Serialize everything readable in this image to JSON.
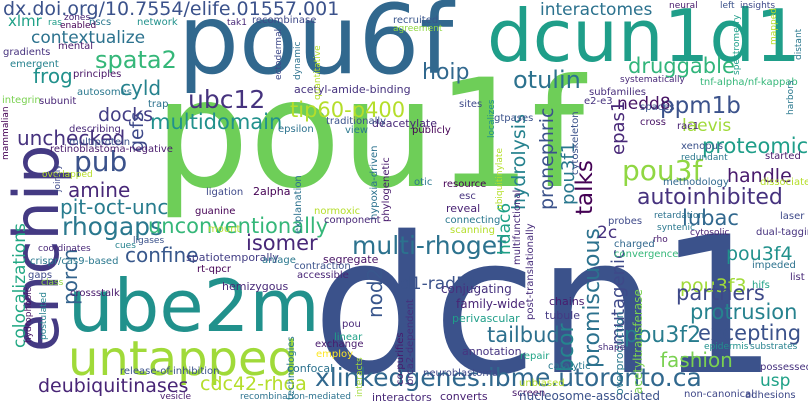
{
  "words": [
    {
      "text": "dx.doi.org/10.7554/elife.01557.001",
      "color": "#3b528b"
    },
    {
      "text": "pou6f",
      "color": "#31688e"
    },
    {
      "text": "dcun1d1",
      "color": "#1f9e89"
    },
    {
      "text": "pou1f",
      "color": "#6ece58"
    },
    {
      "text": "dcn1",
      "color": "#3b528b"
    },
    {
      "text": "enchip",
      "color": "#443a83"
    },
    {
      "text": "ube2m",
      "color": "#21918c"
    },
    {
      "text": "untapped",
      "color": "#a0da39"
    },
    {
      "text": "spata2",
      "color": "#35b779"
    },
    {
      "text": "contextualize",
      "color": "#2c728e"
    },
    {
      "text": "xlmr",
      "color": "#1fa187"
    },
    {
      "text": "frog",
      "color": "#21918c"
    },
    {
      "text": "ubc12",
      "color": "#46337e"
    },
    {
      "text": "hoip",
      "color": "#31688e"
    },
    {
      "text": "otulin",
      "color": "#2c728e"
    },
    {
      "text": "interactomes",
      "color": "#2c728e"
    },
    {
      "text": "druggable",
      "color": "#31b57b"
    },
    {
      "text": "ppm1b",
      "color": "#3b528b"
    },
    {
      "text": "nedd8",
      "color": "#471365"
    },
    {
      "text": "tip60-p400",
      "color": "#b5de2b"
    },
    {
      "text": "multidomain",
      "color": "#21918c"
    },
    {
      "text": "cyld",
      "color": "#26828e"
    },
    {
      "text": "docks",
      "color": "#433e85"
    },
    {
      "text": "gefs",
      "color": "#3e4989"
    },
    {
      "text": "unchecked",
      "color": "#46327e"
    },
    {
      "text": "pub",
      "color": "#3b528b"
    },
    {
      "text": "amine",
      "color": "#482878"
    },
    {
      "text": "pit-oct-unc",
      "color": "#287c8e"
    },
    {
      "text": "rhogaps",
      "color": "#2a788e"
    },
    {
      "text": "multi-rhogef",
      "color": "#2c728e"
    },
    {
      "text": "unconventionally",
      "color": "#35b779"
    },
    {
      "text": "isomer",
      "color": "#482878"
    },
    {
      "text": "confine",
      "color": "#38588c"
    },
    {
      "text": "porcn",
      "color": "#33638d"
    },
    {
      "text": "colocalizations",
      "color": "#22a884"
    },
    {
      "text": "deubiquitinases",
      "color": "#482576"
    },
    {
      "text": "cdc42-rhoa",
      "color": "#b5de2b"
    },
    {
      "text": "xlinkedgenes.ibme.utoronto.ca",
      "color": "#31688e"
    },
    {
      "text": "talks",
      "color": "#440154"
    },
    {
      "text": "pou3f1",
      "color": "#2a788e"
    },
    {
      "text": "pou3f2",
      "color": "#287c8e"
    },
    {
      "text": "pou3f3",
      "color": "#a0da39"
    },
    {
      "text": "pou3f4",
      "color": "#21918c"
    },
    {
      "text": "pou3f",
      "color": "#90d743"
    },
    {
      "text": "proteomic",
      "color": "#1f9e89"
    },
    {
      "text": "handle",
      "color": "#481a6c"
    },
    {
      "text": "autoinhibited",
      "color": "#46327e"
    },
    {
      "text": "lubac",
      "color": "#31688e"
    },
    {
      "text": "partners",
      "color": "#3e4989"
    },
    {
      "text": "protrusion",
      "color": "#26828e"
    },
    {
      "text": "excepting",
      "color": "#3b528b"
    },
    {
      "text": "fashion",
      "color": "#7ad151"
    },
    {
      "text": "usp",
      "color": "#1fa187"
    },
    {
      "text": "tailbud",
      "color": "#2d708e"
    },
    {
      "text": "promiscuous",
      "color": "#2c728e"
    },
    {
      "text": "mutagenic",
      "color": "#3e4989"
    },
    {
      "text": "bcor",
      "color": "#25848e"
    },
    {
      "text": "d1-rad51",
      "color": "#3b528b"
    },
    {
      "text": "nod2",
      "color": "#39568c"
    },
    {
      "text": "hdac6",
      "color": "#1fa187"
    },
    {
      "text": "pronephric",
      "color": "#3b528b"
    },
    {
      "text": "hydrolysis",
      "color": "#26828e"
    },
    {
      "text": "epas1",
      "color": "#482878"
    },
    {
      "text": "2c",
      "color": "#46327e"
    },
    {
      "text": "laevis",
      "color": "#a0da39"
    },
    {
      "text": "acetyl-amide-binding",
      "color": "#46327e"
    },
    {
      "text": "family-wide",
      "color": "#482576"
    },
    {
      "text": "perivascular",
      "color": "#1f9e89"
    },
    {
      "text": "annotation",
      "color": "#463480"
    },
    {
      "text": "chains",
      "color": "#481d6f"
    },
    {
      "text": "tubule",
      "color": "#443a83"
    },
    {
      "text": "repair",
      "color": "#20a486"
    },
    {
      "text": "catalytic",
      "color": "#2a788e"
    },
    {
      "text": "unbiased",
      "color": "#b5de2b"
    },
    {
      "text": "screen",
      "color": "#481a6c"
    },
    {
      "text": "converts",
      "color": "#482173"
    },
    {
      "text": "nucleosome-associated",
      "color": "#3b528b"
    },
    {
      "text": "non-canonical",
      "color": "#3f4788"
    },
    {
      "text": "recombination-mediated",
      "color": "#2c728e"
    },
    {
      "text": "interactors",
      "color": "#482878"
    },
    {
      "text": "confocal",
      "color": "#2c728e"
    },
    {
      "text": "vesicle",
      "color": "#481a6c"
    },
    {
      "text": "release-of-inhibition",
      "color": "#3b528b"
    },
    {
      "text": "crossstalk",
      "color": "#481a6c"
    },
    {
      "text": "gaps",
      "color": "#3e4989"
    },
    {
      "text": "hemizygous",
      "color": "#482878"
    },
    {
      "text": "rt-qpcr",
      "color": "#440154"
    },
    {
      "text": "spatiotemporally",
      "color": "#433e85"
    },
    {
      "text": "crispr/cas9-based",
      "color": "#2a788e"
    },
    {
      "text": "ligases",
      "color": "#3b528b"
    },
    {
      "text": "exchange",
      "color": "#481a6c"
    },
    {
      "text": "linear",
      "color": "#1fa187"
    },
    {
      "text": "employ",
      "color": "#fde725"
    },
    {
      "text": "pou",
      "color": "#482878"
    },
    {
      "text": "accessible",
      "color": "#482576"
    },
    {
      "text": "segregate",
      "color": "#471365"
    },
    {
      "text": "conjugating",
      "color": "#46327e"
    },
    {
      "text": "contraction",
      "color": "#3b528b"
    },
    {
      "text": "anlage",
      "color": "#2a788e"
    },
    {
      "text": "retinoblastoma-negative",
      "color": "#481a6c"
    },
    {
      "text": "multiprotein",
      "color": "#3b528b"
    },
    {
      "text": "describing",
      "color": "#482878"
    },
    {
      "text": "subunit",
      "color": "#482576"
    },
    {
      "text": "autosomes",
      "color": "#2a788e"
    },
    {
      "text": "principles",
      "color": "#471365"
    },
    {
      "text": "mental",
      "color": "#481a6c"
    },
    {
      "text": "gradients",
      "color": "#46327e"
    },
    {
      "text": "emergent",
      "color": "#26828e"
    },
    {
      "text": "integrin",
      "color": "#7ad151"
    },
    {
      "text": "trap",
      "color": "#2c728e"
    },
    {
      "text": "ectodermal",
      "color": "#3e4989"
    },
    {
      "text": "recombinase",
      "color": "#3e4989"
    },
    {
      "text": "recruited",
      "color": "#39568c"
    },
    {
      "text": "agreement",
      "color": "#90d743"
    },
    {
      "text": "tak1",
      "color": "#482878"
    },
    {
      "text": "network",
      "color": "#21918c"
    },
    {
      "text": "nscs",
      "color": "#2a788e"
    },
    {
      "text": "zones",
      "color": "#482173"
    },
    {
      "text": "enabled",
      "color": "#440154"
    },
    {
      "text": "ras",
      "color": "#1f9e89"
    },
    {
      "text": "subfamilies",
      "color": "#472d7b"
    },
    {
      "text": "systematically",
      "color": "#482878"
    },
    {
      "text": "tnf-alpha/nf-kappab",
      "color": "#35b779"
    },
    {
      "text": "sites",
      "color": "#3e4989"
    },
    {
      "text": "gtpases",
      "color": "#3b528b"
    },
    {
      "text": "localizes",
      "color": "#21918c"
    },
    {
      "text": "deacetylate",
      "color": "#482878"
    },
    {
      "text": "traditionally",
      "color": "#3b528b"
    },
    {
      "text": "publicly",
      "color": "#440154"
    },
    {
      "text": "e2-e3",
      "color": "#46327e"
    },
    {
      "text": "rac1",
      "color": "#482173"
    },
    {
      "text": "cross",
      "color": "#471365"
    },
    {
      "text": "spaces",
      "color": "#3b528b"
    },
    {
      "text": "xenopus",
      "color": "#3b528b"
    },
    {
      "text": "redundant",
      "color": "#2a788e"
    },
    {
      "text": "started",
      "color": "#481a6c"
    },
    {
      "text": "methodology",
      "color": "#31688e"
    },
    {
      "text": "dissociate",
      "color": "#b5de2b"
    },
    {
      "text": "retardation",
      "color": "#2c728e"
    },
    {
      "text": "laser",
      "color": "#3e4989"
    },
    {
      "text": "syntenic",
      "color": "#2a788e"
    },
    {
      "text": "cytosolic",
      "color": "#482173"
    },
    {
      "text": "dual-tagging",
      "color": "#46327e"
    },
    {
      "text": "rho",
      "color": "#481a6c"
    },
    {
      "text": "impeded",
      "color": "#2c728e"
    },
    {
      "text": "list",
      "color": "#482878"
    },
    {
      "text": "hifs",
      "color": "#1fa187"
    },
    {
      "text": "substrates",
      "color": "#26828e"
    },
    {
      "text": "epidermis",
      "color": "#21918c"
    },
    {
      "text": "possessed",
      "color": "#46327e"
    },
    {
      "text": "adhesions",
      "color": "#3e4989"
    },
    {
      "text": "acetyltransferase",
      "color": "#7ad151"
    },
    {
      "text": "overproduction",
      "color": "#2a788e"
    },
    {
      "text": "charged",
      "color": "#31688e"
    },
    {
      "text": "convergence",
      "color": "#35b779"
    },
    {
      "text": "probes",
      "color": "#3e4989"
    },
    {
      "text": "cytoskeleton",
      "color": "#3b528b"
    },
    {
      "text": "post-translationally",
      "color": "#472d7b"
    },
    {
      "text": "multifunctional",
      "color": "#482878"
    },
    {
      "text": "connecting",
      "color": "#2a788e"
    },
    {
      "text": "resource",
      "color": "#440154"
    },
    {
      "text": "esc",
      "color": "#46327e"
    },
    {
      "text": "otic",
      "color": "#2a788e"
    },
    {
      "text": "reveal",
      "color": "#482173"
    },
    {
      "text": "scanning",
      "color": "#b5de2b"
    },
    {
      "text": "phylogenetic",
      "color": "#481a6c"
    },
    {
      "text": "hypoxia-driven",
      "color": "#2c728e"
    },
    {
      "text": "component",
      "color": "#482878"
    },
    {
      "text": "normoxic",
      "color": "#b5de2b"
    },
    {
      "text": "2alpha",
      "color": "#440154"
    },
    {
      "text": "ligation",
      "color": "#3e4989"
    },
    {
      "text": "guanine",
      "color": "#440154"
    },
    {
      "text": "explanation",
      "color": "#2c728e"
    },
    {
      "text": "mount",
      "color": "#b5de2b"
    },
    {
      "text": "epsilon",
      "color": "#2c728e"
    },
    {
      "text": "view",
      "color": "#2a788e"
    },
    {
      "text": "neuroblastoma",
      "color": "#3e4989"
    },
    {
      "text": "co-purifies",
      "color": "#481a6c"
    },
    {
      "text": "brca2-dependent",
      "color": "#46327e"
    },
    {
      "text": "technologies",
      "color": "#2a788e"
    },
    {
      "text": "cues",
      "color": "#26828e"
    },
    {
      "text": "coordinates",
      "color": "#482878"
    },
    {
      "text": "overlapped",
      "color": "#b5de2b"
    },
    {
      "text": "postulated",
      "color": "#26828e"
    },
    {
      "text": "hydrophobic",
      "color": "#471365"
    },
    {
      "text": "class",
      "color": "#90d743"
    },
    {
      "text": "jointly",
      "color": "#3e4989"
    },
    {
      "text": "mammalian",
      "color": "#440154"
    },
    {
      "text": "left",
      "color": "#3b528b"
    },
    {
      "text": "insights",
      "color": "#3e4989"
    },
    {
      "text": "spectrometry",
      "color": "#1f9e89"
    },
    {
      "text": "mapped",
      "color": "#b5de2b"
    },
    {
      "text": "harbors",
      "color": "#2a788e"
    },
    {
      "text": "distant",
      "color": "#2a788e"
    },
    {
      "text": "neural",
      "color": "#481a6c"
    },
    {
      "text": "dynamic",
      "color": "#2c728e"
    },
    {
      "text": "quantitative",
      "color": "#b5de2b"
    },
    {
      "text": "interacts",
      "color": "#a0da39"
    },
    {
      "text": "ubiquitinylate",
      "color": "#b5de2b"
    },
    {
      "text": "shape",
      "color": "#472d7b"
    }
  ]
}
